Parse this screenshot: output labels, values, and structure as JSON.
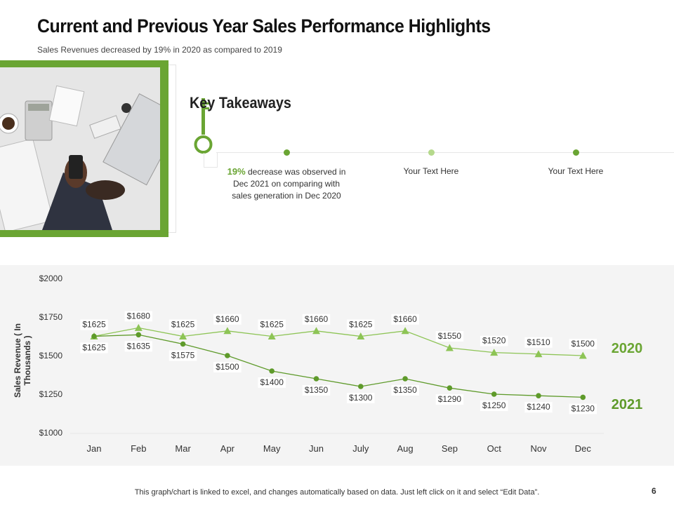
{
  "header": {
    "title": "Current and Previous Year Sales Performance Highlights",
    "subtitle": "Sales Revenues decreased by 19% in 2020 as compared to 2019"
  },
  "takeaways": {
    "title": "Key Takeaways",
    "items": [
      {
        "highlight": "19%",
        "text": " decrease was observed in Dec 2021 on comparing with sales generation in Dec 2020",
        "dot_color": "#6aa533"
      },
      {
        "text": "Your Text Here",
        "dot_color": "#b5d98c"
      },
      {
        "text": "Your Text Here",
        "dot_color": "#6aa533"
      }
    ]
  },
  "chart_data": {
    "type": "line",
    "categories": [
      "Jan",
      "Feb",
      "Mar",
      "Apr",
      "May",
      "Jun",
      "July",
      "Aug",
      "Sep",
      "Oct",
      "Nov",
      "Dec"
    ],
    "ylabel": "Sales Revenue ( In Thousands )",
    "ylim": [
      1000,
      2000
    ],
    "yticks": [
      1000,
      1250,
      1500,
      1750,
      2000
    ],
    "ytick_labels": [
      "$1000",
      "$1250",
      "$1500",
      "$1750",
      "$2000"
    ],
    "series": [
      {
        "name": "2020",
        "marker": "triangle",
        "color": "#8dc455",
        "values": [
          1625,
          1680,
          1625,
          1660,
          1625,
          1660,
          1625,
          1660,
          1550,
          1520,
          1510,
          1500
        ],
        "labels": [
          "$1625",
          "$1680",
          "$1625",
          "$1660",
          "$1625",
          "$1660",
          "$1625",
          "$1660",
          "$1550",
          "$1520",
          "$1510",
          "$1500"
        ]
      },
      {
        "name": "2021",
        "marker": "circle",
        "color": "#5e9a2a",
        "values": [
          1625,
          1635,
          1575,
          1500,
          1400,
          1350,
          1300,
          1350,
          1290,
          1250,
          1240,
          1230
        ],
        "labels": [
          "$1625",
          "$1635",
          "$1575",
          "$1500",
          "$1400",
          "$1350",
          "$1300",
          "$1350",
          "$1290",
          "$1250",
          "$1240",
          "$1230"
        ]
      }
    ]
  },
  "colors": {
    "accent": "#6aa533",
    "accent_light": "#8dc455",
    "chart_bg": "#f4f4f4"
  },
  "footer": {
    "note": "This graph/chart is linked to excel, and changes automatically based on data. Just left click on it and select “Edit Data”.",
    "page_number": "6"
  }
}
